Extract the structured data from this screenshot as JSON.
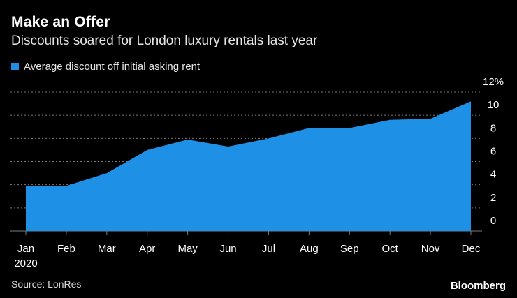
{
  "title": "Make an Offer",
  "subtitle": "Discounts soared for London luxury rentals last year",
  "source": "Source: LonRes",
  "brand": "Bloomberg",
  "colors": {
    "background": "#000000",
    "series": "#1e90e6",
    "grid": "#7a7a7a",
    "text": "#ffffff"
  },
  "chart_data": {
    "type": "area",
    "categories": [
      "Jan",
      "Feb",
      "Mar",
      "Apr",
      "May",
      "Jun",
      "Jul",
      "Aug",
      "Sep",
      "Oct",
      "Nov",
      "Dec"
    ],
    "year_label": "2020",
    "series": [
      {
        "name": "Average discount off initial asking rent",
        "values": [
          3.9,
          3.9,
          5.0,
          7.0,
          7.9,
          7.3,
          8.0,
          8.9,
          8.9,
          9.6,
          9.7,
          11.2
        ]
      }
    ],
    "ylim": [
      0,
      12
    ],
    "yticks": [
      0,
      2,
      4,
      6,
      8,
      10,
      12
    ],
    "ytick_labels": [
      "0",
      "2",
      "4",
      "6",
      "8",
      "10",
      "12%"
    ],
    "y_axis_position": "right",
    "grid": true,
    "legend_position": "top-left"
  }
}
